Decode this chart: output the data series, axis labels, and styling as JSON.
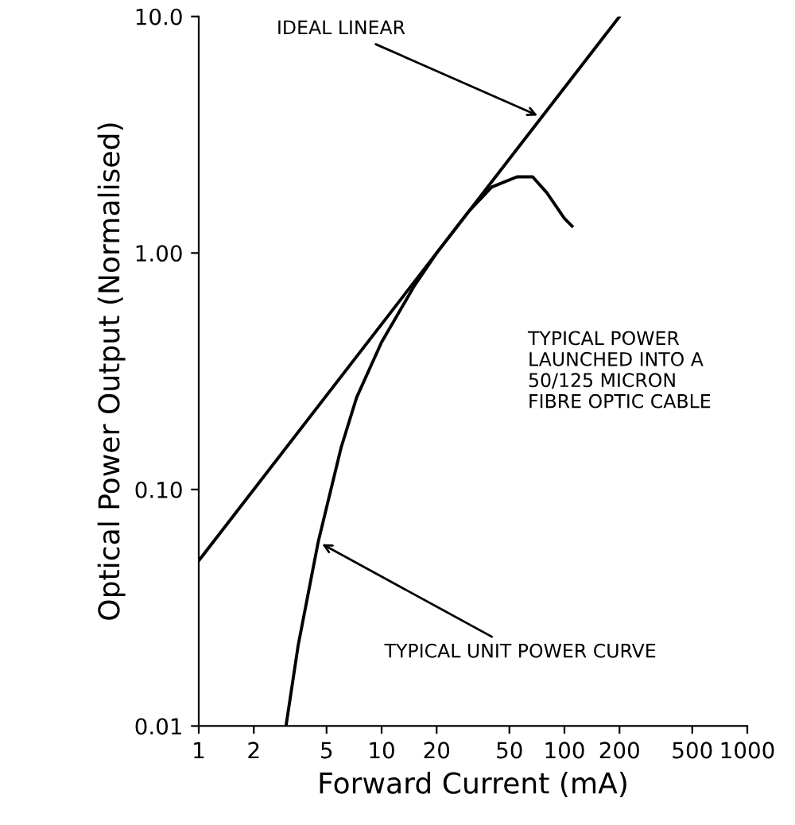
{
  "chart_data": {
    "type": "line",
    "xlabel": "Forward Current (mA)",
    "ylabel": "Optical Power Output (Normalised)",
    "log": "xy",
    "xlim": [
      1,
      1000
    ],
    "ylim": [
      0.01,
      10
    ],
    "xticks": [
      1,
      2,
      5,
      10,
      20,
      50,
      100,
      200,
      500,
      1000
    ],
    "yticks": [
      {
        "value": 0.01,
        "label": "0.01"
      },
      {
        "value": 0.1,
        "label": "0.10"
      },
      {
        "value": 1,
        "label": "1.00"
      },
      {
        "value": 10,
        "label": "10.0"
      }
    ],
    "grid": false,
    "marker": "none",
    "line_style": "solid",
    "series": [
      {
        "color": "#000000",
        "x": [
          1,
          200
        ],
        "values": [
          0.05,
          10
        ]
      },
      {
        "color": "#000000",
        "x": [
          3,
          3.5,
          4.5,
          6,
          7.3,
          10,
          15,
          20,
          30,
          40,
          55,
          67,
          80,
          100,
          110
        ],
        "values": [
          0.01,
          0.022,
          0.06,
          0.15,
          0.245,
          0.42,
          0.72,
          1.0,
          1.5,
          1.9,
          2.1,
          2.1,
          1.8,
          1.4,
          1.3
        ]
      }
    ],
    "annotations": [
      {
        "text": "IDEAL LINEAR",
        "x": 75,
        "y": 3.75
      },
      {
        "text": "TYPICAL UNIT POWER CURVE",
        "x": 4.5,
        "y": 0.06
      },
      "TYPICAL POWER\nLAUNCHED INTO A\n50/125 MICRON\nFIBRE OPTIC CABLE"
    ]
  }
}
